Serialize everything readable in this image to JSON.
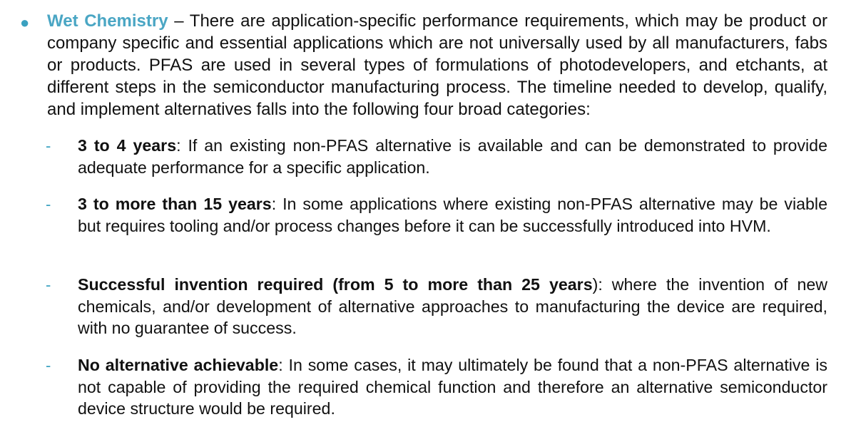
{
  "bullet": {
    "heading": "Wet Chemistry",
    "text": " – There are application-specific performance requirements, which may be product or company specific and essential applications which are not universally used by all manufacturers, fabs or products. PFAS are used in several types of formulations of photodevelopers, and etchants, at different steps in the semiconductor manufacturing process. The timeline needed to develop, qualify, and implement alternatives falls into the following four broad categories:"
  },
  "categories": [
    {
      "dash": "-",
      "heading": "3 to 4 years",
      "text": ": If an existing non-PFAS alternative is available and can be demonstrated to provide adequate performance for a specific application."
    },
    {
      "dash": "-",
      "heading": "3 to more than 15 years",
      "text": ": In some applications where existing non-PFAS alternative may be viable but requires tooling and/or process changes before it can be successfully introduced into HVM."
    },
    {
      "dash": "-",
      "heading": "Successful invention required (from 5 to more than 25 years",
      "text": "): where the invention of new chemicals, and/or development of alternative approaches to manufacturing the device are required, with no guarantee of success."
    },
    {
      "dash": "-",
      "heading": "No alternative achievable",
      "text": ": In some cases, it may ultimately be found that a non-PFAS alternative is not capable of providing the required chemical function and therefore an alternative semiconductor device structure would be required."
    }
  ],
  "colors": {
    "accent": "#4aa6c4",
    "text": "#111111",
    "background": "#ffffff"
  }
}
